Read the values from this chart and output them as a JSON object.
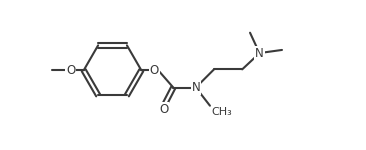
{
  "bg_color": "#ffffff",
  "line_color": "#3a3a3a",
  "line_width": 1.5,
  "font_size": 8.5,
  "fig_width": 3.66,
  "fig_height": 1.5,
  "dpi": 100,
  "xlim": [
    0.0,
    10.5
  ],
  "ylim": [
    -0.5,
    4.2
  ]
}
